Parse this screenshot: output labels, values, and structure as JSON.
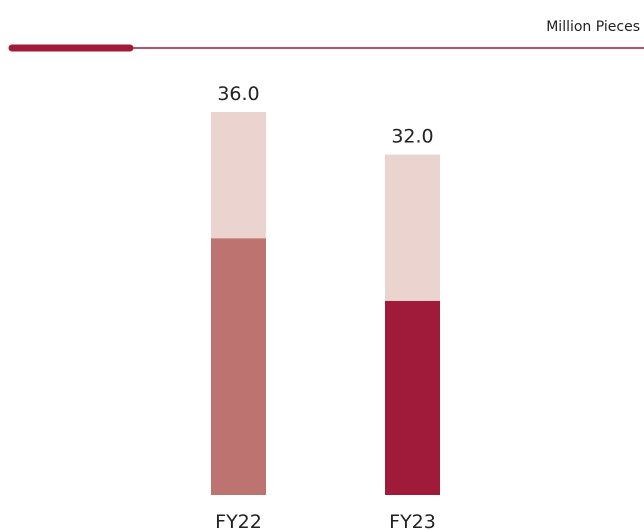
{
  "chart_data": {
    "type": "bar",
    "title": "",
    "unit_label": "Million Pieces",
    "categories": [
      "FY22",
      "FY23"
    ],
    "values": [
      36.0,
      32.0
    ],
    "value_labels": [
      "36.0",
      "32.0"
    ],
    "fill_fractions": [
      0.67,
      0.57
    ],
    "ylim": [
      0,
      36.0
    ],
    "grid": false,
    "colors": {
      "bar_background": "#ebd4d0",
      "bar_fills": [
        "#bd7470",
        "#a01a3a"
      ],
      "accent": "#a01a3a",
      "rule": "#a01a3a",
      "text": "#222222"
    }
  }
}
